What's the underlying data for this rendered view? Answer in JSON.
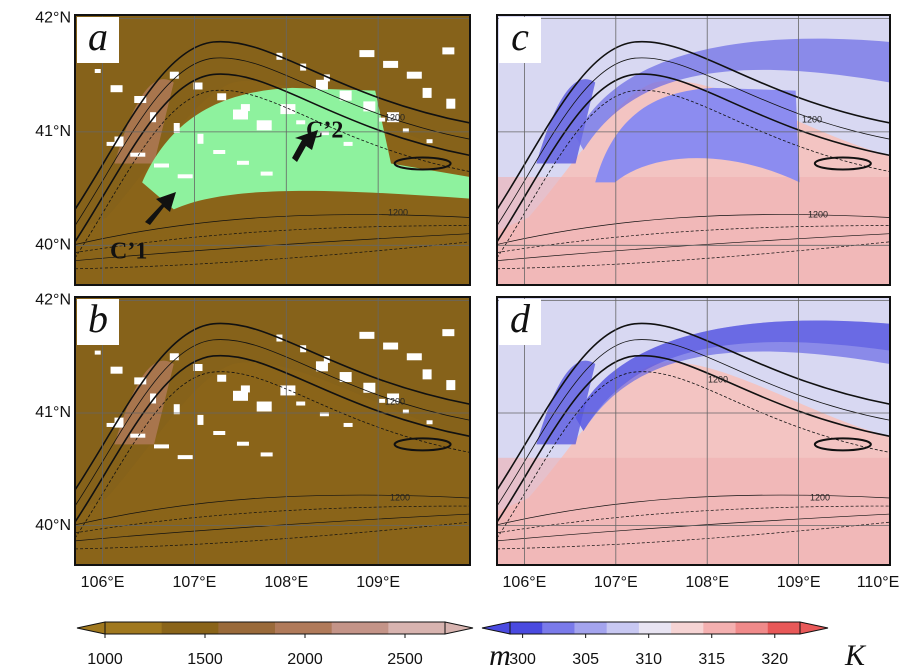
{
  "map": {
    "xlim": [
      105.7,
      110
    ],
    "ylim": [
      39.65,
      42.03
    ],
    "xticks": [
      {
        "value": 106,
        "label": "106°E"
      },
      {
        "value": 107,
        "label": "107°E"
      },
      {
        "value": 108,
        "label": "108°E"
      },
      {
        "value": 109,
        "label": "109°E"
      },
      {
        "value": 110,
        "label": "110°E"
      }
    ],
    "yticks": [
      {
        "value": 40,
        "label": "40°N"
      },
      {
        "value": 41,
        "label": "41°N"
      },
      {
        "value": 42,
        "label": "42°N"
      }
    ]
  },
  "panels": [
    {
      "label": "a",
      "annotations": [
        "C’1",
        "C’2"
      ],
      "contour_labels": [
        "1200",
        "1200"
      ]
    },
    {
      "label": "b",
      "contour_labels": [
        "1200",
        "1200"
      ]
    },
    {
      "label": "c",
      "contour_labels": [
        "1200",
        "1200"
      ]
    },
    {
      "label": "d",
      "contour_labels": [
        "1200",
        "1200"
      ]
    }
  ],
  "colorbars": [
    {
      "lim": [
        1000,
        2700
      ],
      "ticks": [
        1000,
        1500,
        2000,
        2500
      ],
      "unit": "m",
      "colors": [
        "#a0781e",
        "#8a6419",
        "#9a6a3a",
        "#b07a5a",
        "#c49488",
        "#d8b4b0"
      ]
    },
    {
      "lim": [
        299,
        322
      ],
      "ticks": [
        300,
        305,
        310,
        315,
        320
      ],
      "unit": "K",
      "colors": [
        "#4a4ae0",
        "#7a7aea",
        "#a4a4ee",
        "#c8c8f2",
        "#e8e4f2",
        "#f6d4d4",
        "#f4b0b0",
        "#f08a8a",
        "#e85858"
      ]
    }
  ]
}
